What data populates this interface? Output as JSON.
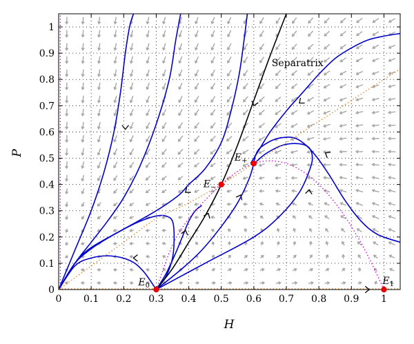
{
  "chart_data": {
    "type": "line",
    "title": "",
    "xlabel": "H",
    "ylabel": "P",
    "xlim": [
      0,
      1.05
    ],
    "ylim": [
      0,
      1.05
    ],
    "x_ticks": [
      0,
      0.1,
      0.2,
      0.3,
      0.4,
      0.5,
      0.6,
      0.7,
      0.8,
      0.9,
      1
    ],
    "y_ticks": [
      0,
      0.1,
      0.2,
      0.3,
      0.4,
      0.5,
      0.6,
      0.7,
      0.8,
      0.9,
      1
    ],
    "grid": true,
    "colors": {
      "trajectory": "#0000cc",
      "separatrix": "#000000",
      "nullcline_h": "#e08020",
      "nullcline_p": "#cc00cc",
      "vector_field": "#a6a6a6",
      "equilibrium": "#ee0000"
    },
    "equilibria": [
      {
        "name": "E",
        "sub": "0",
        "x": 0.3,
        "y": 0
      },
      {
        "name": "E",
        "sub": "−",
        "x": 0.5,
        "y": 0.4
      },
      {
        "name": "E",
        "sub": "+",
        "x": 0.6,
        "y": 0.48
      },
      {
        "name": "E",
        "sub": "1",
        "x": 1.0,
        "y": 0
      }
    ],
    "annotations": [
      {
        "text": "Separatrix",
        "x": 0.655,
        "y": 0.85
      }
    ],
    "series": [
      {
        "kind": "trajectory",
        "x": [
          0.0,
          0.05,
          0.1,
          0.14,
          0.17,
          0.19,
          0.205,
          0.218,
          0.23
        ],
        "y": [
          0.0,
          0.15,
          0.3,
          0.45,
          0.6,
          0.75,
          0.9,
          1.0,
          1.05
        ]
      },
      {
        "kind": "trajectory",
        "x": [
          0.0,
          0.05,
          0.1,
          0.15,
          0.2,
          0.25,
          0.3,
          0.34,
          0.36,
          0.375
        ],
        "y": [
          0.0,
          0.1,
          0.18,
          0.26,
          0.35,
          0.47,
          0.63,
          0.8,
          0.95,
          1.05
        ]
      },
      {
        "kind": "trajectory",
        "x": [
          0.0,
          0.05,
          0.1,
          0.2,
          0.3,
          0.37,
          0.4,
          0.45,
          0.5,
          0.53,
          0.555,
          0.57,
          0.58
        ],
        "y": [
          0.0,
          0.1,
          0.16,
          0.23,
          0.3,
          0.36,
          0.4,
          0.46,
          0.56,
          0.68,
          0.82,
          0.95,
          1.05
        ]
      },
      {
        "kind": "trajectory",
        "x": [
          0.0,
          0.05,
          0.1,
          0.15,
          0.2,
          0.25,
          0.3,
          0.33,
          0.35,
          0.355,
          0.35,
          0.33,
          0.3
        ],
        "y": [
          0.0,
          0.1,
          0.155,
          0.195,
          0.23,
          0.26,
          0.28,
          0.28,
          0.26,
          0.2,
          0.12,
          0.05,
          0.0
        ]
      },
      {
        "kind": "trajectory",
        "x": [
          0.0,
          0.05,
          0.1,
          0.16,
          0.22,
          0.26,
          0.3
        ],
        "y": [
          0.0,
          0.09,
          0.12,
          0.128,
          0.11,
          0.07,
          0.0
        ]
      },
      {
        "kind": "trajectory",
        "x": [
          0.3,
          0.33,
          0.36,
          0.38,
          0.4,
          0.42,
          0.44
        ],
        "y": [
          0.0,
          0.06,
          0.14,
          0.2,
          0.26,
          0.3,
          0.32
        ]
      },
      {
        "kind": "separatrix",
        "x": [
          0.3,
          0.35,
          0.4,
          0.45,
          0.5,
          0.55,
          0.6,
          0.65,
          0.7
        ],
        "y": [
          0.0,
          0.08,
          0.18,
          0.28,
          0.4,
          0.55,
          0.72,
          0.89,
          1.05
        ]
      },
      {
        "kind": "trajectory",
        "x": [
          0.3,
          0.38,
          0.44,
          0.5,
          0.55,
          0.585,
          0.6
        ],
        "y": [
          0.0,
          0.08,
          0.15,
          0.24,
          0.33,
          0.42,
          0.48
        ]
      },
      {
        "kind": "trajectory",
        "x": [
          0.3,
          0.45,
          0.6,
          0.68,
          0.74,
          0.77,
          0.78,
          0.77,
          0.74,
          0.69,
          0.64,
          0.61,
          0.6
        ],
        "y": [
          0.0,
          0.1,
          0.2,
          0.28,
          0.37,
          0.45,
          0.5,
          0.54,
          0.555,
          0.55,
          0.52,
          0.49,
          0.48
        ]
      },
      {
        "kind": "trajectory",
        "x": [
          0.6,
          0.605,
          0.62,
          0.66,
          0.7,
          0.73,
          0.76,
          0.79,
          0.83,
          0.88,
          0.93,
          0.98,
          1.05
        ],
        "y": [
          0.48,
          0.51,
          0.54,
          0.57,
          0.58,
          0.575,
          0.55,
          0.51,
          0.44,
          0.34,
          0.26,
          0.21,
          0.18
        ]
      },
      {
        "kind": "trajectory",
        "x": [
          0.59,
          0.6,
          0.62,
          0.65,
          0.7,
          0.75,
          0.8,
          0.85,
          0.9,
          0.95,
          1.0,
          1.05
        ],
        "y": [
          0.48,
          0.5,
          0.54,
          0.6,
          0.68,
          0.75,
          0.82,
          0.88,
          0.92,
          0.95,
          0.965,
          0.975
        ]
      },
      {
        "kind": "nullcline_h",
        "x": [
          0.0,
          0.1,
          0.2,
          0.3,
          0.4,
          0.5,
          0.6,
          0.7,
          0.8,
          0.9,
          1.0,
          1.05
        ],
        "y": [
          0.0,
          0.09,
          0.18,
          0.27,
          0.33,
          0.4,
          0.48,
          0.56,
          0.64,
          0.72,
          0.8,
          0.84
        ]
      },
      {
        "kind": "nullcline_p",
        "x": [
          0.3,
          0.35,
          0.4,
          0.45,
          0.5,
          0.55,
          0.6,
          0.65,
          0.7,
          0.75,
          0.8,
          0.85,
          0.9,
          0.95,
          1.0
        ],
        "y": [
          0.0,
          0.17,
          0.27,
          0.34,
          0.4,
          0.45,
          0.48,
          0.49,
          0.48,
          0.45,
          0.4,
          0.33,
          0.24,
          0.13,
          0.0
        ]
      }
    ],
    "trajectory_arrows": [
      {
        "x": 0.205,
        "y": 0.61,
        "dx": 0.0,
        "dy": -1.0
      },
      {
        "x": 0.39,
        "y": 0.37,
        "dx": -1.0,
        "dy": -0.8
      },
      {
        "x": 0.23,
        "y": 0.12,
        "dx": -1.0,
        "dy": 0.0
      },
      {
        "x": 0.39,
        "y": 0.225,
        "dx": 0.25,
        "dy": 1.0
      },
      {
        "x": 0.46,
        "y": 0.29,
        "dx": 0.4,
        "dy": 1.0
      },
      {
        "x": 0.56,
        "y": 0.36,
        "dx": 0.5,
        "dy": 1.0
      },
      {
        "x": 0.6,
        "y": 0.7,
        "dx": -0.3,
        "dy": -1.0
      },
      {
        "x": 0.77,
        "y": 0.38,
        "dx": 0.1,
        "dy": 1.0
      },
      {
        "x": 0.82,
        "y": 0.52,
        "dx": -1.0,
        "dy": 0.6
      },
      {
        "x": 0.74,
        "y": 0.71,
        "dx": -1.0,
        "dy": -0.8
      },
      {
        "x": 0.955,
        "y": 0.0,
        "dx": 1.0,
        "dy": 0.0
      }
    ]
  }
}
